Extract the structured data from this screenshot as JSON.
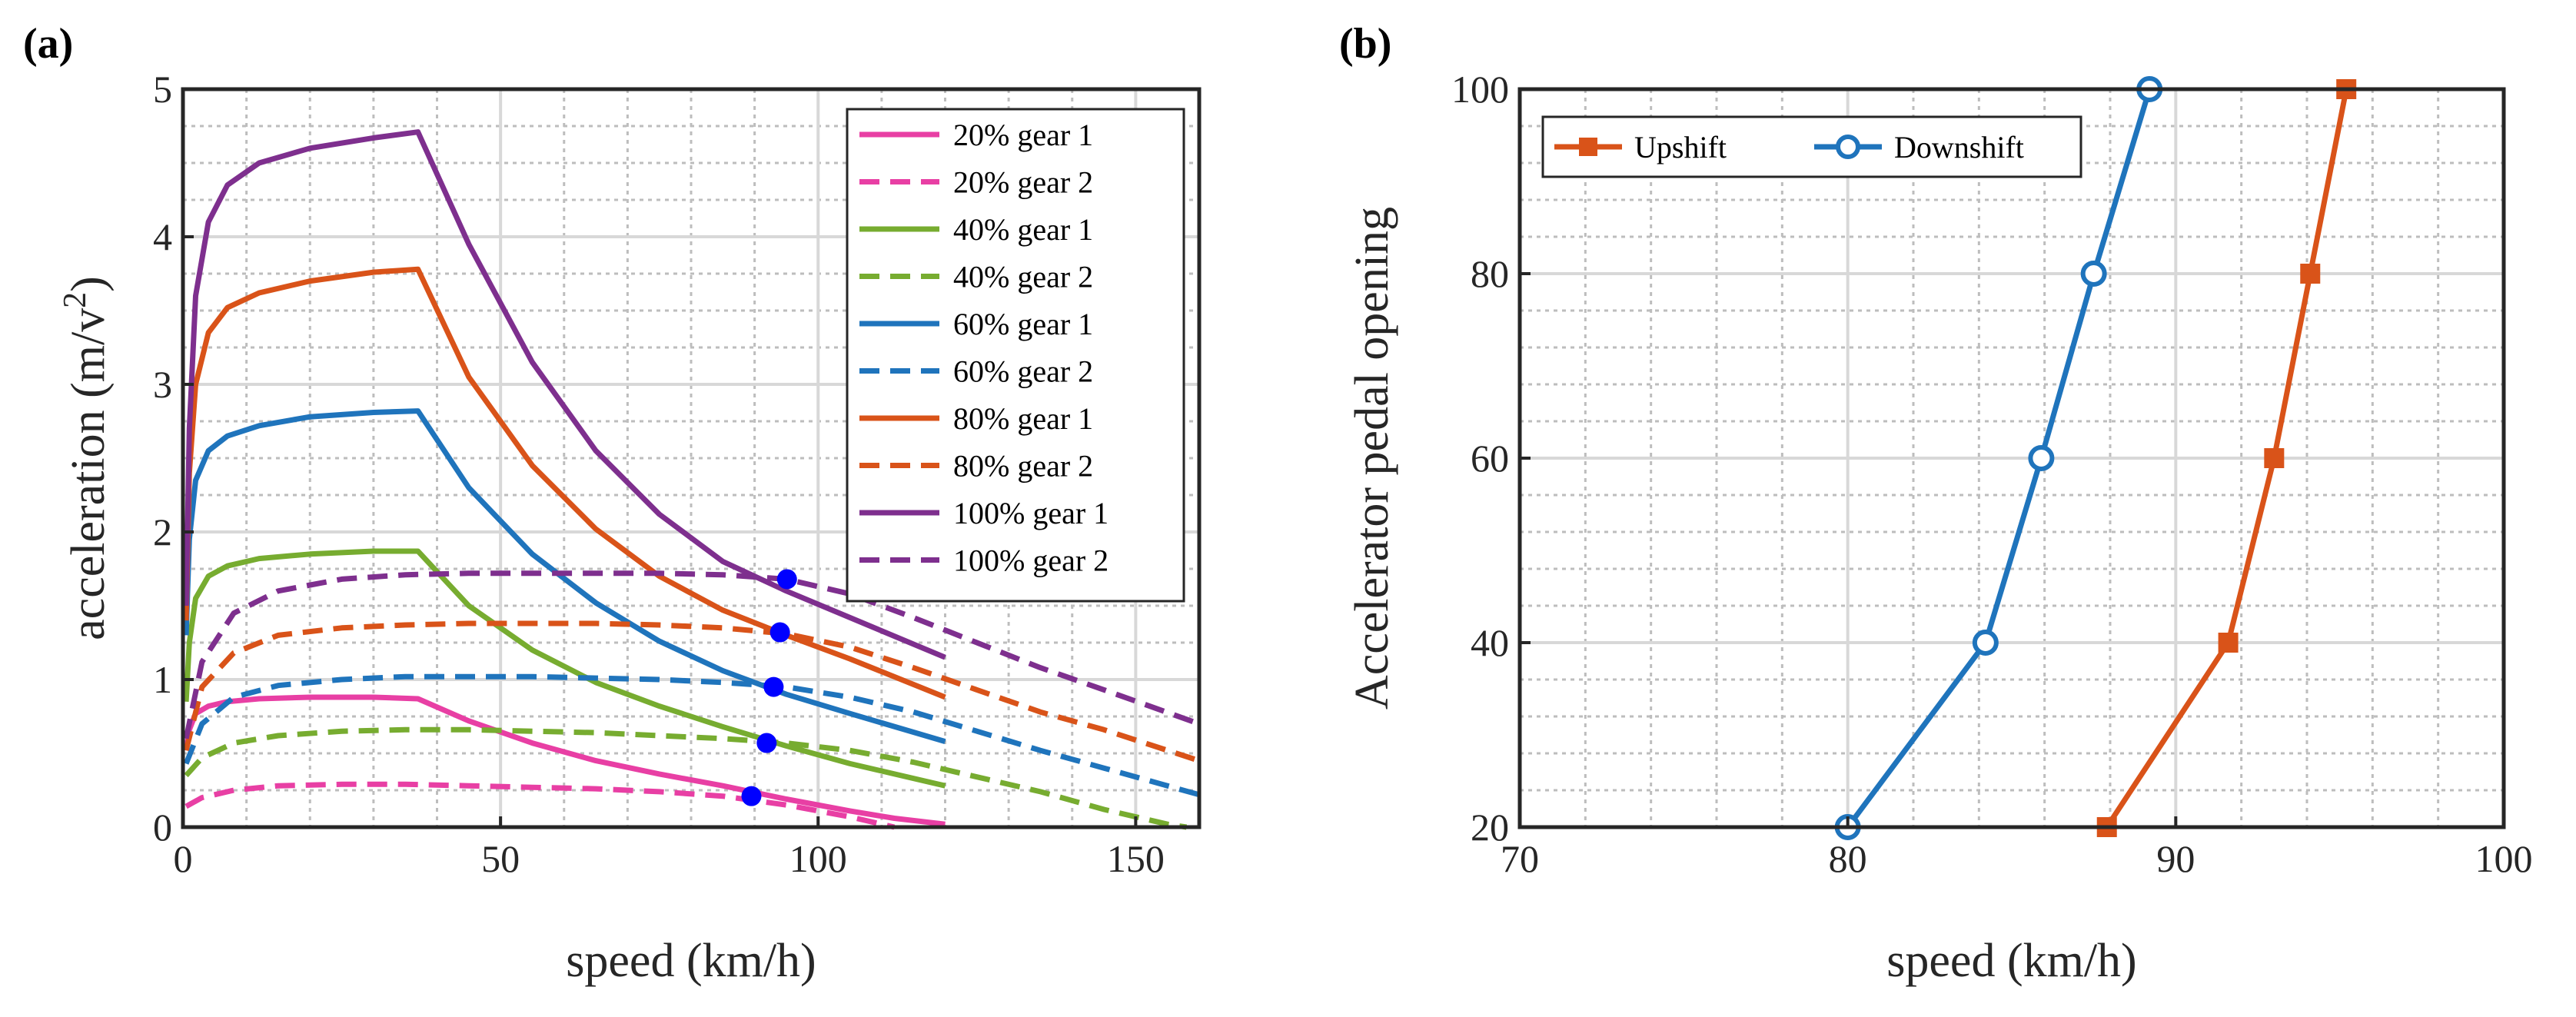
{
  "chart_data": [
    {
      "type": "line",
      "panel_label": "(a)",
      "xlabel": "speed (km/h)",
      "ylabel": "acceleration (m/v",
      "ylabel_sup": "2",
      "ylabel_tail": ")",
      "xlim": [
        0,
        160
      ],
      "ylim": [
        0,
        5
      ],
      "xticks": [
        0,
        50,
        100,
        150
      ],
      "yticks": [
        0,
        1,
        2,
        3,
        4,
        5
      ],
      "grid": true,
      "legend_position": "top-right",
      "series": [
        {
          "name": "20% gear 1",
          "color": "#E83FA4",
          "dash": "solid",
          "x": [
            0.5,
            1,
            2,
            4,
            7,
            12,
            20,
            30,
            37,
            45,
            55,
            65,
            75,
            85,
            95,
            105,
            112,
            120
          ],
          "y": [
            0.52,
            0.66,
            0.77,
            0.82,
            0.85,
            0.87,
            0.88,
            0.88,
            0.87,
            0.72,
            0.57,
            0.45,
            0.36,
            0.28,
            0.19,
            0.11,
            0.06,
            0.02
          ]
        },
        {
          "name": "20% gear 2",
          "color": "#E83FA4",
          "dash": "dashed",
          "x": [
            0.5,
            3,
            8,
            15,
            25,
            35,
            45,
            55,
            65,
            75,
            85,
            95,
            105,
            112
          ],
          "y": [
            0.14,
            0.2,
            0.25,
            0.28,
            0.29,
            0.29,
            0.28,
            0.27,
            0.26,
            0.24,
            0.21,
            0.15,
            0.07,
            0.0
          ]
        },
        {
          "name": "40% gear 1",
          "color": "#77AC30",
          "dash": "solid",
          "x": [
            0.5,
            1,
            2,
            4,
            7,
            12,
            20,
            30,
            37,
            45,
            55,
            65,
            75,
            85,
            95,
            105,
            120
          ],
          "y": [
            0.85,
            1.25,
            1.55,
            1.7,
            1.77,
            1.82,
            1.85,
            1.87,
            1.87,
            1.5,
            1.2,
            0.98,
            0.82,
            0.68,
            0.55,
            0.43,
            0.28
          ]
        },
        {
          "name": "40% gear 2",
          "color": "#77AC30",
          "dash": "dashed",
          "x": [
            0.5,
            3,
            8,
            15,
            25,
            35,
            45,
            55,
            65,
            75,
            85,
            95,
            105,
            115,
            125,
            135,
            145,
            155,
            158
          ],
          "y": [
            0.35,
            0.47,
            0.57,
            0.62,
            0.65,
            0.66,
            0.66,
            0.65,
            0.64,
            0.62,
            0.6,
            0.57,
            0.52,
            0.44,
            0.34,
            0.24,
            0.12,
            0.02,
            0.0
          ]
        },
        {
          "name": "60% gear 1",
          "color": "#1F74BC",
          "dash": "solid",
          "x": [
            0.5,
            1,
            2,
            4,
            7,
            12,
            20,
            30,
            37,
            45,
            55,
            65,
            75,
            85,
            95,
            105,
            120
          ],
          "y": [
            1.3,
            1.95,
            2.35,
            2.55,
            2.65,
            2.72,
            2.78,
            2.81,
            2.82,
            2.3,
            1.85,
            1.52,
            1.26,
            1.06,
            0.9,
            0.77,
            0.58
          ]
        },
        {
          "name": "60% gear 2",
          "color": "#1F74BC",
          "dash": "dashed",
          "x": [
            0.5,
            3,
            8,
            15,
            25,
            35,
            45,
            55,
            65,
            75,
            85,
            95,
            105,
            115,
            125,
            135,
            145,
            160
          ],
          "y": [
            0.43,
            0.7,
            0.88,
            0.96,
            1.0,
            1.02,
            1.02,
            1.02,
            1.01,
            1.0,
            0.98,
            0.95,
            0.88,
            0.78,
            0.65,
            0.52,
            0.4,
            0.22
          ]
        },
        {
          "name": "80% gear 1",
          "color": "#D95319",
          "dash": "solid",
          "x": [
            0.5,
            1,
            2,
            4,
            7,
            12,
            20,
            30,
            37,
            45,
            55,
            65,
            75,
            85,
            95,
            105,
            120
          ],
          "y": [
            1.4,
            2.4,
            3.0,
            3.35,
            3.52,
            3.62,
            3.7,
            3.76,
            3.78,
            3.05,
            2.45,
            2.02,
            1.7,
            1.47,
            1.3,
            1.14,
            0.88
          ]
        },
        {
          "name": "80% gear 2",
          "color": "#D95319",
          "dash": "dashed",
          "x": [
            0.5,
            3,
            8,
            15,
            25,
            35,
            45,
            55,
            65,
            75,
            85,
            95,
            105,
            115,
            125,
            135,
            145,
            160
          ],
          "y": [
            0.52,
            0.95,
            1.18,
            1.3,
            1.35,
            1.37,
            1.38,
            1.38,
            1.38,
            1.37,
            1.35,
            1.31,
            1.22,
            1.08,
            0.93,
            0.78,
            0.66,
            0.45
          ]
        },
        {
          "name": "100% gear 1",
          "color": "#7E2F8E",
          "dash": "solid",
          "x": [
            0.5,
            1,
            2,
            4,
            7,
            12,
            20,
            30,
            37,
            45,
            55,
            65,
            75,
            85,
            95,
            105,
            120
          ],
          "y": [
            1.5,
            2.7,
            3.6,
            4.1,
            4.35,
            4.5,
            4.6,
            4.67,
            4.71,
            3.95,
            3.15,
            2.55,
            2.12,
            1.8,
            1.6,
            1.42,
            1.15
          ]
        },
        {
          "name": "100% gear 2",
          "color": "#7E2F8E",
          "dash": "dashed",
          "x": [
            0.5,
            3,
            8,
            15,
            25,
            35,
            45,
            55,
            65,
            75,
            85,
            95,
            105,
            115,
            125,
            135,
            145,
            160
          ],
          "y": [
            0.6,
            1.12,
            1.45,
            1.6,
            1.68,
            1.71,
            1.72,
            1.72,
            1.72,
            1.72,
            1.71,
            1.68,
            1.58,
            1.42,
            1.25,
            1.08,
            0.93,
            0.7
          ]
        }
      ],
      "shift_points": {
        "color": "#0000FF",
        "x": [
          89.5,
          91.9,
          93.0,
          94.0,
          95.1
        ],
        "y": [
          0.21,
          0.57,
          0.95,
          1.32,
          1.68
        ]
      }
    },
    {
      "type": "line",
      "panel_label": "(b)",
      "xlabel": "speed (km/h)",
      "ylabel": "Accelerator pedal opening",
      "xlim": [
        70,
        100
      ],
      "ylim": [
        20,
        100
      ],
      "xticks": [
        70,
        80,
        90,
        100
      ],
      "yticks": [
        20,
        40,
        60,
        80,
        100
      ],
      "grid": true,
      "legend_position": "top-left",
      "series": [
        {
          "name": "Upshift",
          "color": "#D95319",
          "marker": "square",
          "x": [
            87.9,
            91.6,
            93.0,
            94.1,
            95.2
          ],
          "y": [
            20,
            40,
            60,
            80,
            100
          ]
        },
        {
          "name": "Downshift",
          "color": "#1F74BC",
          "marker": "circle",
          "x": [
            80.0,
            84.2,
            85.9,
            87.5,
            89.2
          ],
          "y": [
            20,
            40,
            60,
            80,
            100
          ]
        }
      ]
    }
  ]
}
